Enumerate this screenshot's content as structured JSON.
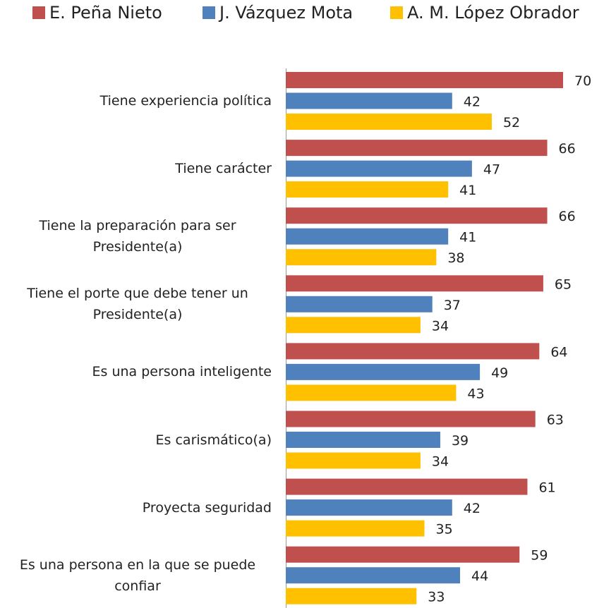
{
  "chart_data": {
    "type": "bar",
    "orientation": "horizontal",
    "categories": [
      "Tiene experiencia política",
      "Tiene carácter",
      "Tiene la preparación para ser Presidente(a)",
      "Tiene el porte que debe tener un Presidente(a)",
      "Es una persona inteligente",
      "Es carismático(a)",
      "Proyecta seguridad",
      "Es una persona en la que se puede confiar"
    ],
    "series": [
      {
        "name": "E. Peña Nieto",
        "color": "#c0504d",
        "values": [
          70,
          66,
          66,
          65,
          64,
          63,
          61,
          59
        ]
      },
      {
        "name": "J. Vázquez Mota",
        "color": "#4f81bd",
        "values": [
          42,
          47,
          41,
          37,
          49,
          39,
          42,
          44
        ]
      },
      {
        "name": "A. M. López Obrador",
        "color": "#ffc000",
        "values": [
          52,
          41,
          38,
          34,
          43,
          34,
          35,
          33
        ]
      }
    ],
    "legend": "top"
  }
}
